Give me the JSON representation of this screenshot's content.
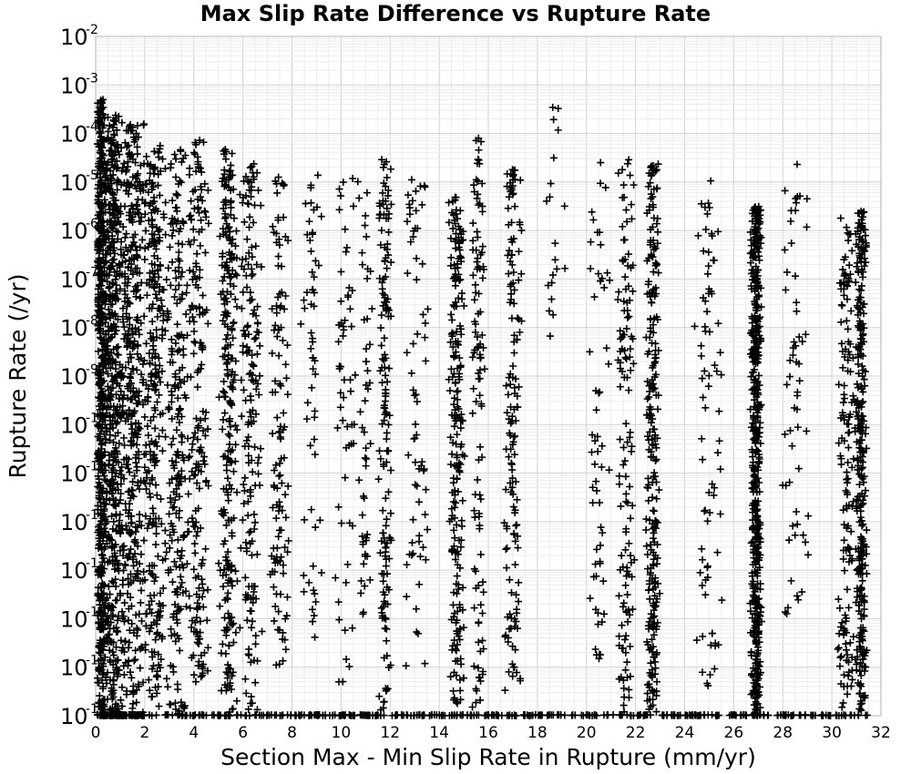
{
  "chart_data": {
    "type": "scatter",
    "title": "Max Slip Rate Difference vs Rupture Rate",
    "xlabel": "Section Max - Min Slip Rate in Rupture (mm/yr)",
    "ylabel": "Rupture Rate (/yr)",
    "xlim": [
      0,
      32
    ],
    "ylim": [
      1e-16,
      0.01
    ],
    "yscale": "log",
    "grid": true,
    "marker": "+",
    "marker_color": "#000000",
    "x_ticks": [
      "0",
      "2",
      "4",
      "6",
      "8",
      "10",
      "12",
      "14",
      "16",
      "18",
      "20",
      "22",
      "24",
      "26",
      "28",
      "30",
      "32"
    ],
    "y_ticks": [
      {
        "base": "10",
        "exp": "-16"
      },
      {
        "base": "10",
        "exp": "-15"
      },
      {
        "base": "10",
        "exp": "-14"
      },
      {
        "base": "10",
        "exp": "-13"
      },
      {
        "base": "10",
        "exp": "-12"
      },
      {
        "base": "10",
        "exp": "-11"
      },
      {
        "base": "10",
        "exp": "-10"
      },
      {
        "base": "10",
        "exp": "-9"
      },
      {
        "base": "10",
        "exp": "-8"
      },
      {
        "base": "10",
        "exp": "-7"
      },
      {
        "base": "10",
        "exp": "-6"
      },
      {
        "base": "10",
        "exp": "-5"
      },
      {
        "base": "10",
        "exp": "-4"
      },
      {
        "base": "10",
        "exp": "-3"
      },
      {
        "base": "10",
        "exp": "-2"
      }
    ],
    "clusters": [
      {
        "x": 0.15,
        "spread": 0.3,
        "ymin": -16,
        "ymax": -3.3,
        "n": 700
      },
      {
        "x": 0.7,
        "spread": 0.5,
        "ymin": -16,
        "ymax": -3.6,
        "n": 550
      },
      {
        "x": 1.5,
        "spread": 0.6,
        "ymin": -16,
        "ymax": -3.8,
        "n": 420
      },
      {
        "x": 2.4,
        "spread": 0.5,
        "ymin": -16,
        "ymax": -4.2,
        "n": 280
      },
      {
        "x": 3.3,
        "spread": 0.5,
        "ymin": -16,
        "ymax": -4.3,
        "n": 230
      },
      {
        "x": 4.2,
        "spread": 0.5,
        "ymin": -15.5,
        "ymax": -4.1,
        "n": 200
      },
      {
        "x": 5.4,
        "spread": 0.4,
        "ymin": -16,
        "ymax": -4.3,
        "n": 260
      },
      {
        "x": 6.3,
        "spread": 0.5,
        "ymin": -16,
        "ymax": -4.6,
        "n": 180
      },
      {
        "x": 7.5,
        "spread": 0.5,
        "ymin": -15,
        "ymax": -4.9,
        "n": 120
      },
      {
        "x": 8.8,
        "spread": 0.5,
        "ymin": -15,
        "ymax": -4.7,
        "n": 60
      },
      {
        "x": 10.2,
        "spread": 0.5,
        "ymin": -15.5,
        "ymax": -4.8,
        "n": 60
      },
      {
        "x": 11.0,
        "spread": 0.3,
        "ymin": -14,
        "ymax": -5.2,
        "n": 50
      },
      {
        "x": 11.8,
        "spread": 0.3,
        "ymin": -16,
        "ymax": -4.5,
        "n": 160
      },
      {
        "x": 13.1,
        "spread": 0.5,
        "ymin": -15,
        "ymax": -4.8,
        "n": 70
      },
      {
        "x": 14.7,
        "spread": 0.35,
        "ymin": -16,
        "ymax": -5.3,
        "n": 220
      },
      {
        "x": 15.6,
        "spread": 0.3,
        "ymin": -16,
        "ymax": -4.0,
        "n": 110
      },
      {
        "x": 17.0,
        "spread": 0.4,
        "ymin": -15.5,
        "ymax": -4.7,
        "n": 150
      },
      {
        "x": 18.8,
        "spread": 0.5,
        "ymin": -8.5,
        "ymax": -3.3,
        "n": 20
      },
      {
        "x": 20.5,
        "spread": 0.5,
        "ymin": -15,
        "ymax": -4.4,
        "n": 60
      },
      {
        "x": 21.6,
        "spread": 0.4,
        "ymin": -16,
        "ymax": -4.5,
        "n": 130
      },
      {
        "x": 22.7,
        "spread": 0.3,
        "ymin": -16,
        "ymax": -4.6,
        "n": 260
      },
      {
        "x": 25.0,
        "spread": 0.6,
        "ymin": -15.5,
        "ymax": -4.9,
        "n": 80
      },
      {
        "x": 26.9,
        "spread": 0.25,
        "ymin": -16,
        "ymax": -5.5,
        "n": 520
      },
      {
        "x": 28.5,
        "spread": 0.6,
        "ymin": -14,
        "ymax": -4.6,
        "n": 60
      },
      {
        "x": 30.6,
        "spread": 0.4,
        "ymin": -16,
        "ymax": -5.5,
        "n": 150
      },
      {
        "x": 31.2,
        "spread": 0.25,
        "ymin": -16,
        "ymax": -5.6,
        "n": 320
      }
    ],
    "baseline_points_y": 1e-16
  }
}
